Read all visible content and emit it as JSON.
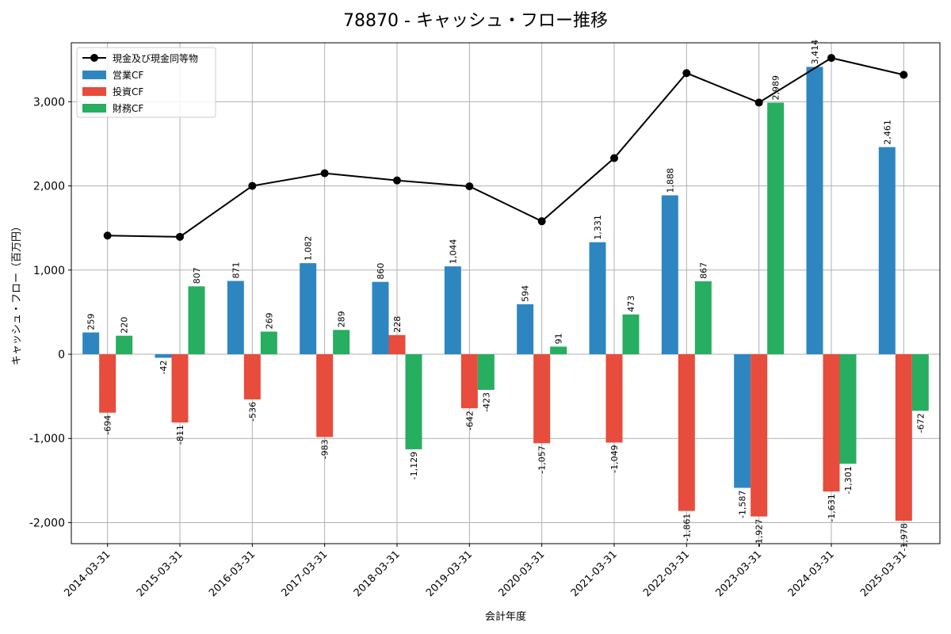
{
  "chart_data": {
    "type": "bar",
    "title": "78870 - キャッシュ・フロー推移",
    "xlabel": "会計年度",
    "ylabel": "キャッシュ・フロー（百万円）",
    "ylim": [
      -2250,
      3700
    ],
    "yticks": [
      -2000,
      -1000,
      0,
      1000,
      2000,
      3000
    ],
    "ytick_labels": [
      "-2,000",
      "-1,000",
      "0",
      "1,000",
      "2,000",
      "3,000"
    ],
    "grid": true,
    "legend_position": "top-left",
    "categories": [
      "2014-03-31",
      "2015-03-31",
      "2016-03-31",
      "2017-03-31",
      "2018-03-31",
      "2019-03-31",
      "2020-03-31",
      "2021-03-31",
      "2022-03-31",
      "2023-03-31",
      "2024-03-31",
      "2025-03-31"
    ],
    "series": [
      {
        "name": "営業CF",
        "kind": "bar",
        "color": "#2e86c1",
        "values": [
          259,
          -42,
          871,
          1082,
          860,
          1044,
          594,
          1331,
          1888,
          -1587,
          3414,
          2461
        ],
        "labels": [
          "259",
          "-42",
          "871",
          "1,082",
          "860",
          "1,044",
          "594",
          "1,331",
          "1,888",
          "-1,587",
          "3,414",
          "2,461"
        ]
      },
      {
        "name": "投資CF",
        "kind": "bar",
        "color": "#e74c3c",
        "values": [
          -694,
          -811,
          -536,
          -983,
          228,
          -642,
          -1057,
          -1049,
          -1861,
          -1927,
          -1631,
          -1978
        ],
        "labels": [
          "-694",
          "-811",
          "-536",
          "-983",
          "228",
          "-642",
          "-1,057",
          "-1,049",
          "-1,861",
          "-1,927",
          "-1,631",
          "-1,978"
        ]
      },
      {
        "name": "財務CF",
        "kind": "bar",
        "color": "#27ae60",
        "values": [
          220,
          807,
          269,
          289,
          -1129,
          -423,
          91,
          473,
          867,
          2989,
          -1301,
          -672
        ],
        "labels": [
          "220",
          "807",
          "269",
          "289",
          "-1,129",
          "-423",
          "91",
          "473",
          "867",
          "2,989",
          "-1,301",
          "-672"
        ]
      },
      {
        "name": "現金及び現金同等物",
        "kind": "line",
        "color": "#000000",
        "values": [
          1410,
          1395,
          2000,
          2150,
          2065,
          1995,
          1580,
          2330,
          3340,
          2990,
          3520,
          3320
        ]
      }
    ]
  }
}
